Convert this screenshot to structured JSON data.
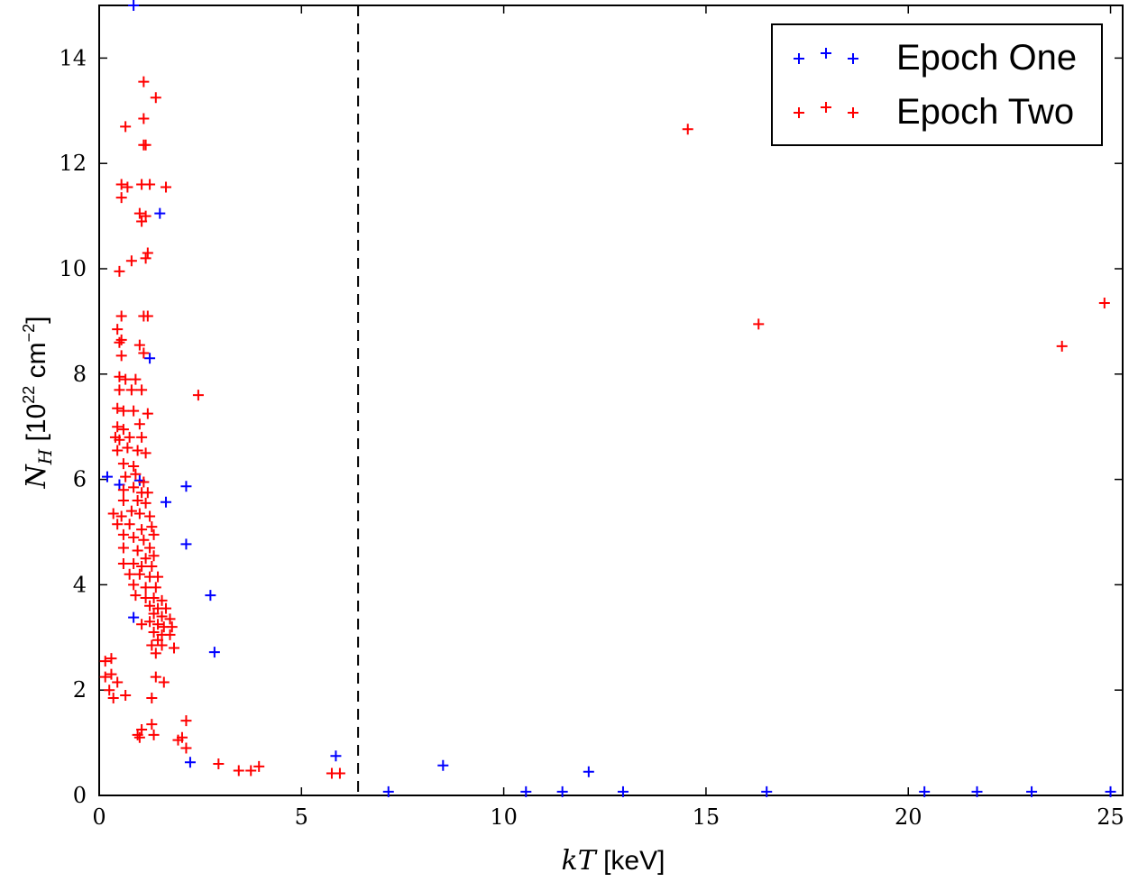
{
  "chart_data": {
    "type": "scatter",
    "xlim": [
      0,
      25.3
    ],
    "ylim": [
      0,
      15
    ],
    "x_ticks": [
      0,
      5,
      10,
      15,
      20,
      25
    ],
    "y_ticks": [
      0,
      2,
      4,
      6,
      8,
      10,
      12,
      14
    ],
    "xlabel": {
      "italic": "kT",
      "rest": " [keV]"
    },
    "ylabel": {
      "italic": "N",
      "sub": "H",
      "rest1": " [10",
      "sup1": "22",
      "rest2": " cm",
      "sup2": "−2",
      "rest3": "]"
    },
    "marker": "+",
    "grid": false,
    "legend_position": "top-right",
    "vline": {
      "x": 6.4,
      "style": "dashed",
      "color": "#000000"
    },
    "series": [
      {
        "name": "Epoch One",
        "color": "#0000ff",
        "points": [
          [
            0.85,
            15.0
          ],
          [
            0.2,
            6.05
          ],
          [
            0.5,
            5.9
          ],
          [
            1.0,
            5.98
          ],
          [
            1.5,
            11.05
          ],
          [
            1.25,
            8.3
          ],
          [
            1.65,
            5.57
          ],
          [
            2.15,
            5.87
          ],
          [
            2.15,
            4.77
          ],
          [
            0.85,
            3.38
          ],
          [
            2.75,
            3.8
          ],
          [
            2.85,
            2.72
          ],
          [
            2.25,
            0.63
          ],
          [
            5.85,
            0.75
          ],
          [
            8.5,
            0.57
          ],
          [
            12.1,
            0.45
          ],
          [
            7.15,
            0.07
          ],
          [
            10.55,
            0.07
          ],
          [
            11.45,
            0.07
          ],
          [
            12.95,
            0.07
          ],
          [
            16.5,
            0.07
          ],
          [
            20.4,
            0.07
          ],
          [
            21.7,
            0.07
          ],
          [
            23.05,
            0.07
          ],
          [
            25.0,
            0.07
          ]
        ]
      },
      {
        "name": "Epoch Two",
        "color": "#ff0000",
        "points": [
          [
            1.1,
            13.55
          ],
          [
            1.4,
            13.25
          ],
          [
            0.65,
            12.7
          ],
          [
            1.1,
            12.85
          ],
          [
            1.1,
            12.35
          ],
          [
            1.15,
            12.35
          ],
          [
            0.55,
            11.6
          ],
          [
            0.7,
            11.55
          ],
          [
            1.05,
            11.6
          ],
          [
            1.25,
            11.6
          ],
          [
            1.65,
            11.55
          ],
          [
            0.55,
            11.35
          ],
          [
            1.0,
            11.05
          ],
          [
            1.15,
            11.0
          ],
          [
            1.05,
            10.9
          ],
          [
            1.2,
            10.3
          ],
          [
            1.15,
            10.2
          ],
          [
            0.8,
            10.15
          ],
          [
            0.5,
            9.95
          ],
          [
            0.55,
            9.1
          ],
          [
            1.1,
            9.1
          ],
          [
            1.2,
            9.1
          ],
          [
            0.45,
            8.85
          ],
          [
            0.5,
            8.6
          ],
          [
            0.55,
            8.65
          ],
          [
            1.0,
            8.55
          ],
          [
            1.1,
            8.4
          ],
          [
            0.55,
            8.35
          ],
          [
            0.5,
            7.95
          ],
          [
            0.65,
            7.9
          ],
          [
            0.9,
            7.9
          ],
          [
            0.5,
            7.7
          ],
          [
            0.8,
            7.7
          ],
          [
            1.05,
            7.7
          ],
          [
            0.45,
            7.35
          ],
          [
            0.6,
            7.3
          ],
          [
            0.85,
            7.3
          ],
          [
            1.2,
            7.25
          ],
          [
            0.45,
            7.0
          ],
          [
            0.6,
            6.95
          ],
          [
            1.0,
            7.05
          ],
          [
            0.4,
            6.8
          ],
          [
            0.5,
            6.75
          ],
          [
            0.75,
            6.8
          ],
          [
            1.05,
            6.8
          ],
          [
            0.45,
            6.55
          ],
          [
            0.7,
            6.6
          ],
          [
            0.95,
            6.55
          ],
          [
            1.15,
            6.5
          ],
          [
            0.6,
            6.3
          ],
          [
            0.85,
            6.25
          ],
          [
            0.65,
            6.05
          ],
          [
            0.9,
            6.1
          ],
          [
            1.1,
            5.95
          ],
          [
            0.6,
            5.8
          ],
          [
            0.85,
            5.85
          ],
          [
            1.05,
            5.75
          ],
          [
            1.2,
            5.75
          ],
          [
            0.6,
            5.6
          ],
          [
            0.95,
            5.6
          ],
          [
            1.15,
            5.55
          ],
          [
            0.35,
            5.35
          ],
          [
            0.55,
            5.3
          ],
          [
            0.8,
            5.4
          ],
          [
            1.0,
            5.35
          ],
          [
            1.25,
            5.3
          ],
          [
            0.45,
            5.15
          ],
          [
            0.75,
            5.15
          ],
          [
            1.05,
            5.05
          ],
          [
            1.3,
            5.1
          ],
          [
            0.6,
            4.95
          ],
          [
            0.85,
            4.9
          ],
          [
            1.1,
            4.85
          ],
          [
            1.35,
            4.95
          ],
          [
            0.6,
            4.7
          ],
          [
            0.95,
            4.65
          ],
          [
            1.25,
            4.7
          ],
          [
            1.35,
            4.55
          ],
          [
            1.15,
            4.5
          ],
          [
            0.6,
            4.4
          ],
          [
            0.85,
            4.4
          ],
          [
            1.05,
            4.35
          ],
          [
            1.3,
            4.35
          ],
          [
            0.75,
            4.2
          ],
          [
            1.0,
            4.2
          ],
          [
            1.25,
            4.15
          ],
          [
            1.45,
            4.15
          ],
          [
            0.85,
            4.0
          ],
          [
            1.15,
            3.95
          ],
          [
            1.4,
            3.95
          ],
          [
            0.9,
            3.8
          ],
          [
            1.15,
            3.75
          ],
          [
            1.35,
            3.75
          ],
          [
            1.55,
            3.7
          ],
          [
            1.25,
            3.6
          ],
          [
            1.45,
            3.55
          ],
          [
            1.65,
            3.55
          ],
          [
            1.35,
            3.45
          ],
          [
            1.55,
            3.4
          ],
          [
            1.75,
            3.35
          ],
          [
            1.25,
            3.3
          ],
          [
            1.45,
            3.25
          ],
          [
            1.6,
            3.2
          ],
          [
            1.8,
            3.2
          ],
          [
            1.05,
            3.25
          ],
          [
            1.35,
            3.1
          ],
          [
            1.55,
            3.05
          ],
          [
            1.75,
            3.05
          ],
          [
            1.45,
            2.95
          ],
          [
            1.3,
            2.85
          ],
          [
            1.55,
            2.85
          ],
          [
            1.4,
            2.7
          ],
          [
            1.85,
            2.8
          ],
          [
            0.15,
            2.55
          ],
          [
            0.3,
            2.6
          ],
          [
            0.3,
            2.3
          ],
          [
            0.15,
            2.25
          ],
          [
            0.45,
            2.15
          ],
          [
            0.25,
            2.0
          ],
          [
            0.35,
            1.85
          ],
          [
            0.65,
            1.9
          ],
          [
            1.3,
            1.85
          ],
          [
            1.4,
            2.25
          ],
          [
            1.6,
            2.15
          ],
          [
            1.05,
            1.25
          ],
          [
            0.95,
            1.15
          ],
          [
            1.0,
            1.1
          ],
          [
            1.3,
            1.35
          ],
          [
            1.35,
            1.15
          ],
          [
            2.15,
            1.42
          ],
          [
            2.05,
            1.1
          ],
          [
            2.15,
            0.9
          ],
          [
            1.95,
            1.05
          ],
          [
            2.95,
            0.6
          ],
          [
            3.45,
            0.47
          ],
          [
            3.75,
            0.47
          ],
          [
            3.95,
            0.55
          ],
          [
            5.75,
            0.42
          ],
          [
            5.95,
            0.42
          ],
          [
            2.45,
            7.6
          ],
          [
            14.55,
            12.65
          ],
          [
            16.3,
            8.95
          ],
          [
            23.8,
            8.53
          ],
          [
            24.85,
            9.35
          ]
        ]
      }
    ]
  }
}
